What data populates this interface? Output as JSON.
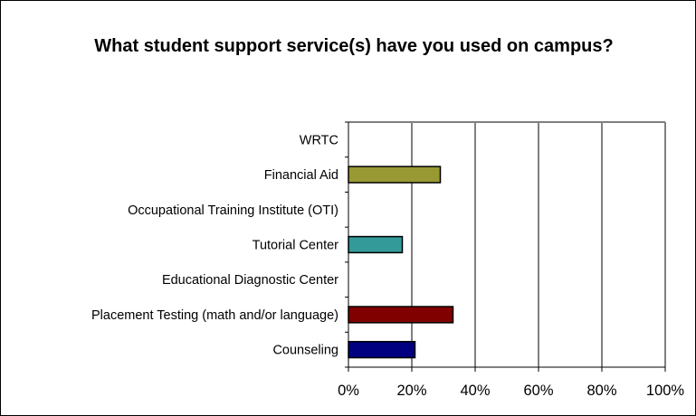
{
  "chart_data": {
    "type": "bar",
    "orientation": "horizontal",
    "title": "What student support service(s) have you used on campus?",
    "categories": [
      "Counseling",
      "Placement Testing (math and/or language)",
      "Educational Diagnostic Center",
      "Tutorial Center",
      "Occupational Training Institute (OTI)",
      "Financial Aid",
      "WRTC"
    ],
    "values": [
      21,
      33,
      0,
      17,
      0,
      29,
      0
    ],
    "colors": [
      "#000080",
      "#800000",
      "#ffffff",
      "#339999",
      "#ffffff",
      "#999933",
      "#ffffff"
    ],
    "xlim": [
      0,
      100
    ],
    "xticks": [
      "0%",
      "20%",
      "40%",
      "60%",
      "80%",
      "100%"
    ],
    "xlabel": "",
    "ylabel": "",
    "grid": true,
    "legend": "none",
    "plot_background": "#ffffff"
  }
}
